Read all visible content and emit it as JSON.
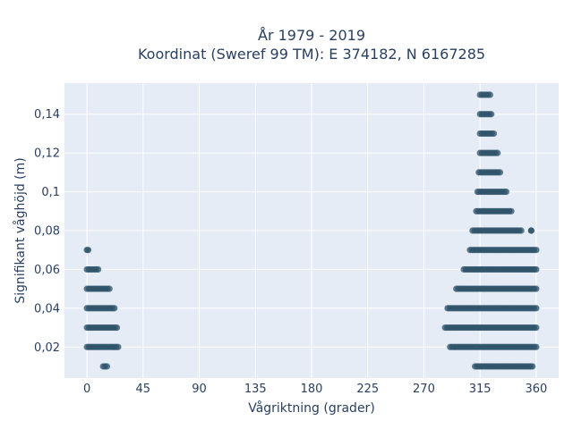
{
  "chart_data": {
    "type": "scatter",
    "title_line1": "År 1979 - 2019",
    "title_line2": "Koordinat (Sweref 99 TM): E 374182, N 6167285",
    "xlabel": "Vågriktning (grader)",
    "ylabel": "Signifikant våghöjd (m)",
    "xlim": [
      -18,
      378
    ],
    "ylim": [
      0.004,
      0.156
    ],
    "x_ticks": [
      0,
      45,
      90,
      135,
      180,
      225,
      270,
      315,
      360
    ],
    "x_tick_labels": [
      "0",
      "45",
      "90",
      "135",
      "180",
      "225",
      "270",
      "315",
      "360"
    ],
    "y_ticks": [
      0.02,
      0.04,
      0.06,
      0.08,
      0.1,
      0.12,
      0.14
    ],
    "y_tick_labels": [
      "0,02",
      "0,04",
      "0,06",
      "0,08",
      "0,1",
      "0,12",
      "0,14"
    ],
    "grid": true,
    "colors": {
      "marker": "#2f5369",
      "plot_bg": "#e5ecf6",
      "grid": "#ffffff",
      "text": "#2a3f5f"
    },
    "series": [
      {
        "segments": [
          {
            "y": 0.01,
            "x": [
              13,
              16
            ]
          },
          {
            "y": 0.01,
            "x": [
              311,
              357
            ]
          },
          {
            "y": 0.02,
            "x": [
              0,
              25
            ]
          },
          {
            "y": 0.02,
            "x": [
              291,
              360
            ]
          },
          {
            "y": 0.03,
            "x": [
              0,
              24
            ]
          },
          {
            "y": 0.03,
            "x": [
              287,
              360
            ]
          },
          {
            "y": 0.04,
            "x": [
              0,
              22
            ]
          },
          {
            "y": 0.04,
            "x": [
              289,
              360
            ]
          },
          {
            "y": 0.05,
            "x": [
              0,
              18
            ]
          },
          {
            "y": 0.05,
            "x": [
              296,
              360
            ]
          },
          {
            "y": 0.06,
            "x": [
              0,
              9
            ]
          },
          {
            "y": 0.06,
            "x": [
              302,
              360
            ]
          },
          {
            "y": 0.07,
            "x": [
              0,
              1
            ]
          },
          {
            "y": 0.07,
            "x": [
              307,
              360
            ]
          },
          {
            "y": 0.08,
            "x": [
              309,
              348
            ]
          },
          {
            "y": 0.08,
            "x": [
              356,
              356
            ]
          },
          {
            "y": 0.09,
            "x": [
              312,
              340
            ]
          },
          {
            "y": 0.1,
            "x": [
              313,
              336
            ]
          },
          {
            "y": 0.11,
            "x": [
              314,
              331
            ]
          },
          {
            "y": 0.12,
            "x": [
              315,
              329
            ]
          },
          {
            "y": 0.13,
            "x": [
              315,
              326
            ]
          },
          {
            "y": 0.14,
            "x": [
              315,
              324
            ]
          },
          {
            "y": 0.15,
            "x": [
              315,
              323
            ]
          }
        ]
      }
    ]
  }
}
